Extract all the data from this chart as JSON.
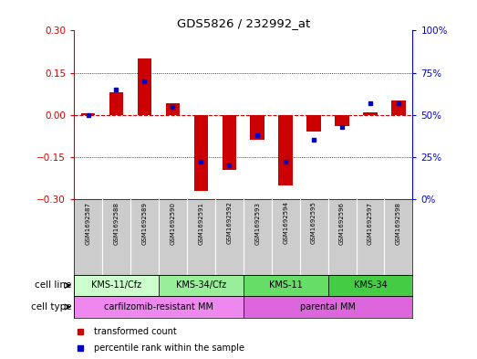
{
  "title": "GDS5826 / 232992_at",
  "samples": [
    "GSM1692587",
    "GSM1692588",
    "GSM1692589",
    "GSM1692590",
    "GSM1692591",
    "GSM1692592",
    "GSM1692593",
    "GSM1692594",
    "GSM1692595",
    "GSM1692596",
    "GSM1692597",
    "GSM1692598"
  ],
  "transformed_count": [
    0.005,
    0.08,
    0.2,
    0.04,
    -0.27,
    -0.195,
    -0.09,
    -0.25,
    -0.06,
    -0.04,
    0.01,
    0.05
  ],
  "percentile_rank": [
    50,
    65,
    70,
    55,
    22,
    20,
    38,
    22,
    35,
    43,
    57,
    57
  ],
  "ylim_left": [
    -0.3,
    0.3
  ],
  "ylim_right": [
    0,
    100
  ],
  "yticks_left": [
    -0.3,
    -0.15,
    0,
    0.15,
    0.3
  ],
  "yticks_right": [
    0,
    25,
    50,
    75,
    100
  ],
  "bar_color": "#cc0000",
  "dot_color": "#0000cc",
  "hline_color": "#cc0000",
  "cell_line_groups": [
    {
      "label": "KMS-11/Cfz",
      "start": 0,
      "end": 3,
      "color": "#ccffcc"
    },
    {
      "label": "KMS-34/Cfz",
      "start": 3,
      "end": 6,
      "color": "#99ee99"
    },
    {
      "label": "KMS-11",
      "start": 6,
      "end": 9,
      "color": "#66dd66"
    },
    {
      "label": "KMS-34",
      "start": 9,
      "end": 12,
      "color": "#44cc44"
    }
  ],
  "cell_type_groups": [
    {
      "label": "carfilzomib-resistant MM",
      "start": 0,
      "end": 6,
      "color": "#ee88ee"
    },
    {
      "label": "parental MM",
      "start": 6,
      "end": 12,
      "color": "#dd66dd"
    }
  ],
  "legend_items": [
    {
      "label": "transformed count",
      "color": "#cc0000"
    },
    {
      "label": "percentile rank within the sample",
      "color": "#0000cc"
    }
  ],
  "sample_bg": "#cccccc",
  "sample_divider": "#ffffff"
}
